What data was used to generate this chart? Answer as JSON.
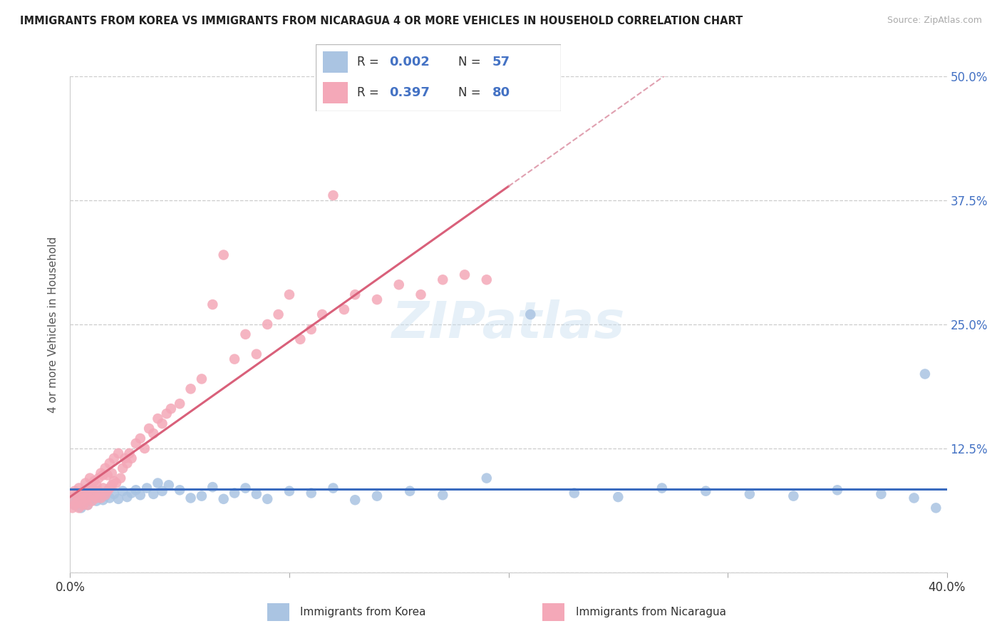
{
  "title": "IMMIGRANTS FROM KOREA VS IMMIGRANTS FROM NICARAGUA 4 OR MORE VEHICLES IN HOUSEHOLD CORRELATION CHART",
  "source": "Source: ZipAtlas.com",
  "ylabel": "4 or more Vehicles in Household",
  "xlim": [
    0.0,
    0.4
  ],
  "ylim": [
    0.0,
    0.5
  ],
  "xtick_vals": [
    0.0,
    0.1,
    0.2,
    0.3,
    0.4
  ],
  "xticklabels": [
    "0.0%",
    "",
    "",
    "",
    "40.0%"
  ],
  "ytick_vals": [
    0.0,
    0.125,
    0.25,
    0.375,
    0.5
  ],
  "yticklabels": [
    "",
    "12.5%",
    "25.0%",
    "37.5%",
    "50.0%"
  ],
  "legend_label1": "Immigrants from Korea",
  "legend_label2": "Immigrants from Nicaragua",
  "color_korea": "#aac4e2",
  "color_nicaragua": "#f4a8b8",
  "color_korea_line": "#3a6bbf",
  "color_nicaragua_line": "#d9607a",
  "color_nicaragua_dash": "#e0a0b0",
  "R_korea": 0.002,
  "N_korea": 57,
  "R_nicaragua": 0.397,
  "N_nicaragua": 80,
  "watermark": "ZIPatlas",
  "korea_x": [
    0.001,
    0.002,
    0.003,
    0.004,
    0.005,
    0.006,
    0.007,
    0.008,
    0.009,
    0.01,
    0.011,
    0.012,
    0.013,
    0.015,
    0.016,
    0.018,
    0.02,
    0.022,
    0.024,
    0.026,
    0.028,
    0.03,
    0.032,
    0.035,
    0.038,
    0.04,
    0.042,
    0.045,
    0.05,
    0.055,
    0.06,
    0.065,
    0.07,
    0.075,
    0.08,
    0.085,
    0.09,
    0.1,
    0.11,
    0.12,
    0.13,
    0.14,
    0.155,
    0.17,
    0.19,
    0.21,
    0.23,
    0.25,
    0.27,
    0.29,
    0.31,
    0.33,
    0.35,
    0.37,
    0.385,
    0.39,
    0.395
  ],
  "korea_y": [
    0.072,
    0.068,
    0.075,
    0.078,
    0.065,
    0.082,
    0.071,
    0.068,
    0.076,
    0.074,
    0.079,
    0.072,
    0.081,
    0.073,
    0.077,
    0.075,
    0.079,
    0.074,
    0.082,
    0.076,
    0.08,
    0.083,
    0.078,
    0.085,
    0.079,
    0.09,
    0.082,
    0.088,
    0.083,
    0.075,
    0.077,
    0.086,
    0.074,
    0.08,
    0.085,
    0.079,
    0.074,
    0.082,
    0.08,
    0.085,
    0.073,
    0.077,
    0.082,
    0.078,
    0.095,
    0.26,
    0.08,
    0.076,
    0.085,
    0.082,
    0.079,
    0.077,
    0.083,
    0.079,
    0.075,
    0.2,
    0.065
  ],
  "nicaragua_x": [
    0.001,
    0.001,
    0.002,
    0.002,
    0.003,
    0.003,
    0.004,
    0.004,
    0.005,
    0.005,
    0.006,
    0.006,
    0.007,
    0.007,
    0.008,
    0.008,
    0.009,
    0.009,
    0.01,
    0.01,
    0.011,
    0.011,
    0.012,
    0.012,
    0.013,
    0.013,
    0.014,
    0.014,
    0.015,
    0.015,
    0.016,
    0.016,
    0.017,
    0.017,
    0.018,
    0.018,
    0.019,
    0.019,
    0.02,
    0.02,
    0.021,
    0.022,
    0.023,
    0.024,
    0.025,
    0.026,
    0.027,
    0.028,
    0.03,
    0.032,
    0.034,
    0.036,
    0.038,
    0.04,
    0.042,
    0.044,
    0.046,
    0.05,
    0.055,
    0.06,
    0.065,
    0.07,
    0.075,
    0.08,
    0.085,
    0.09,
    0.095,
    0.1,
    0.105,
    0.11,
    0.115,
    0.12,
    0.125,
    0.13,
    0.14,
    0.15,
    0.16,
    0.17,
    0.18,
    0.19
  ],
  "nicaragua_y": [
    0.065,
    0.075,
    0.068,
    0.082,
    0.07,
    0.078,
    0.065,
    0.085,
    0.072,
    0.079,
    0.068,
    0.082,
    0.075,
    0.09,
    0.068,
    0.076,
    0.083,
    0.095,
    0.072,
    0.085,
    0.078,
    0.092,
    0.075,
    0.088,
    0.082,
    0.095,
    0.075,
    0.1,
    0.085,
    0.098,
    0.078,
    0.105,
    0.082,
    0.098,
    0.085,
    0.11,
    0.088,
    0.1,
    0.092,
    0.115,
    0.09,
    0.12,
    0.095,
    0.105,
    0.115,
    0.11,
    0.12,
    0.115,
    0.13,
    0.135,
    0.125,
    0.145,
    0.14,
    0.155,
    0.15,
    0.16,
    0.165,
    0.17,
    0.185,
    0.195,
    0.27,
    0.32,
    0.215,
    0.24,
    0.22,
    0.25,
    0.26,
    0.28,
    0.235,
    0.245,
    0.26,
    0.38,
    0.265,
    0.28,
    0.275,
    0.29,
    0.28,
    0.295,
    0.3,
    0.295
  ]
}
